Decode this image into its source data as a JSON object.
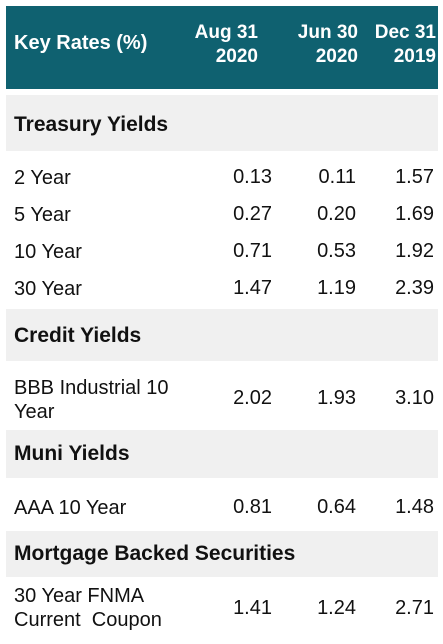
{
  "header": {
    "title": "Key Rates (%)",
    "columns": [
      {
        "line1": "Aug 31",
        "line2": "2020"
      },
      {
        "line1": "Jun 30",
        "line2": "2020"
      },
      {
        "line1": "Dec 31",
        "line2": "2019"
      }
    ]
  },
  "sections": [
    {
      "title": "Treasury Yields",
      "rows": [
        {
          "label": "2 Year",
          "values": [
            "0.13",
            "0.11",
            "1.57"
          ]
        },
        {
          "label": "5 Year",
          "values": [
            "0.27",
            "0.20",
            "1.69"
          ]
        },
        {
          "label": "10 Year",
          "values": [
            "0.71",
            "0.53",
            "1.92"
          ]
        },
        {
          "label": "30 Year",
          "values": [
            "1.47",
            "1.19",
            "2.39"
          ]
        }
      ]
    },
    {
      "title": "Credit Yields",
      "rows": [
        {
          "label_line1": "BBB Industrial 10",
          "label_line2": "Year",
          "values": [
            "2.02",
            "1.93",
            "3.10"
          ]
        }
      ]
    },
    {
      "title": "Muni Yields",
      "rows": [
        {
          "label": "AAA 10 Year",
          "values": [
            "0.81",
            "0.64",
            "1.48"
          ]
        }
      ]
    },
    {
      "title": "Mortgage Backed Securities",
      "rows": [
        {
          "label_line1": "30 Year FNMA",
          "label_line2": "Current  Coupon",
          "values": [
            "1.41",
            "1.24",
            "2.71"
          ]
        }
      ]
    }
  ],
  "colors": {
    "header_bg": "#0f6170",
    "section_bg": "#f0f0f0"
  }
}
